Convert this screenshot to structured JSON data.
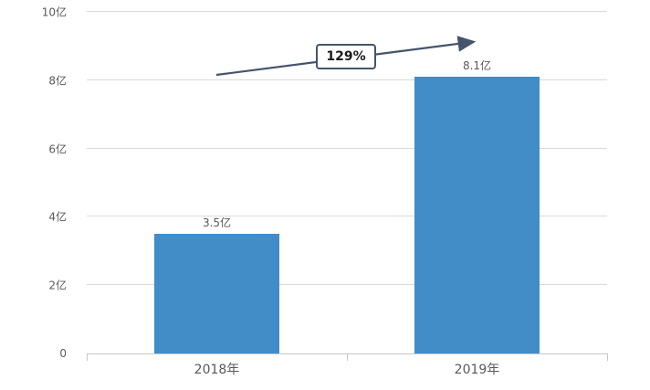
{
  "chart_data": {
    "type": "bar",
    "title": "",
    "categories": [
      "2018年",
      "2019年"
    ],
    "values": [
      3.5,
      8.1
    ],
    "value_labels": [
      "3.5亿",
      "8.1亿"
    ],
    "unit": "亿",
    "xlabel": "",
    "ylabel": "",
    "ylim": [
      0,
      10
    ],
    "yticks": [
      {
        "value": 0,
        "label": "0"
      },
      {
        "value": 2,
        "label": "2亿"
      },
      {
        "value": 4,
        "label": "4亿"
      },
      {
        "value": 6,
        "label": "6亿"
      },
      {
        "value": 8,
        "label": "8亿"
      },
      {
        "value": 10,
        "label": "10亿"
      }
    ],
    "grid": true,
    "legend": null,
    "annotation": {
      "label": "129%"
    },
    "colors": {
      "bar": "#428cc8",
      "arrow": "#44546a",
      "gridline": "#d9d9d9",
      "axis": "#c6c6c6",
      "text": "#595959"
    }
  }
}
